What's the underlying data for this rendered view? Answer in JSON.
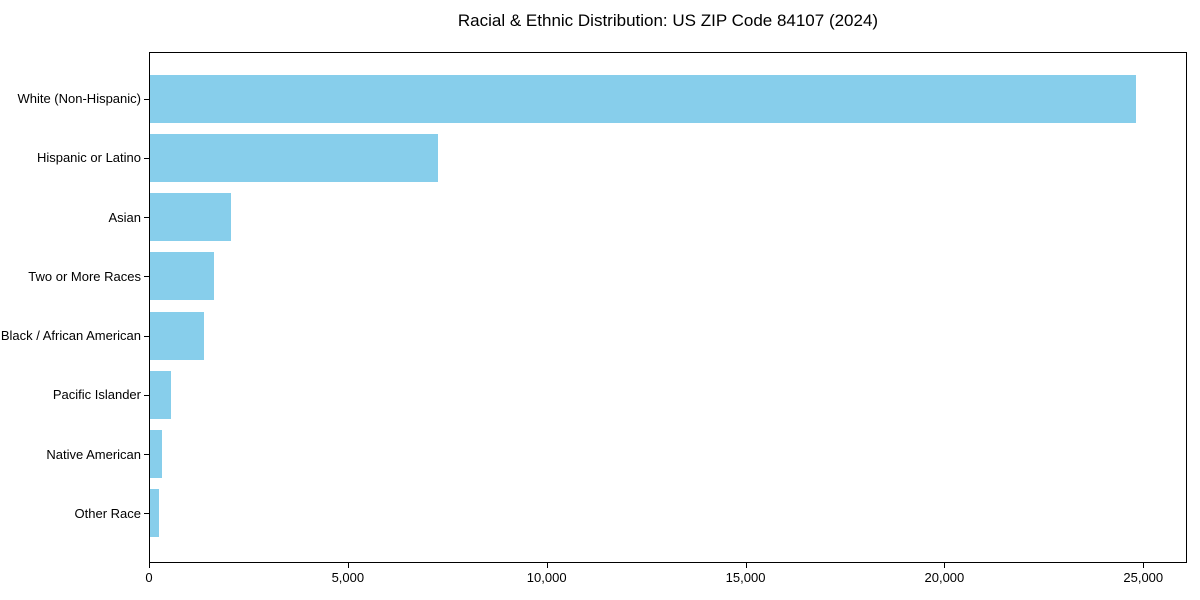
{
  "chart_data": {
    "type": "bar",
    "orientation": "horizontal",
    "title": "Racial & Ethnic Distribution: US ZIP Code 84107 (2024)",
    "categories": [
      "White (Non-Hispanic)",
      "Hispanic or Latino",
      "Asian",
      "Two or More Races",
      "Black / African American",
      "Pacific Islander",
      "Native American",
      "Other Race"
    ],
    "values": [
      24850,
      7250,
      2030,
      1600,
      1360,
      530,
      300,
      220
    ],
    "xlabel": "",
    "ylabel": "",
    "xlim": [
      0,
      26100
    ],
    "xticks": [
      0,
      5000,
      10000,
      15000,
      20000,
      25000
    ],
    "xtick_labels": [
      "0",
      "5,000",
      "10,000",
      "15,000",
      "20,000",
      "25,000"
    ],
    "bar_color": "#87CEEB",
    "axis_color": "#000000",
    "background_color": "#ffffff",
    "grid": false,
    "legend": false,
    "sort_order": "descending"
  }
}
